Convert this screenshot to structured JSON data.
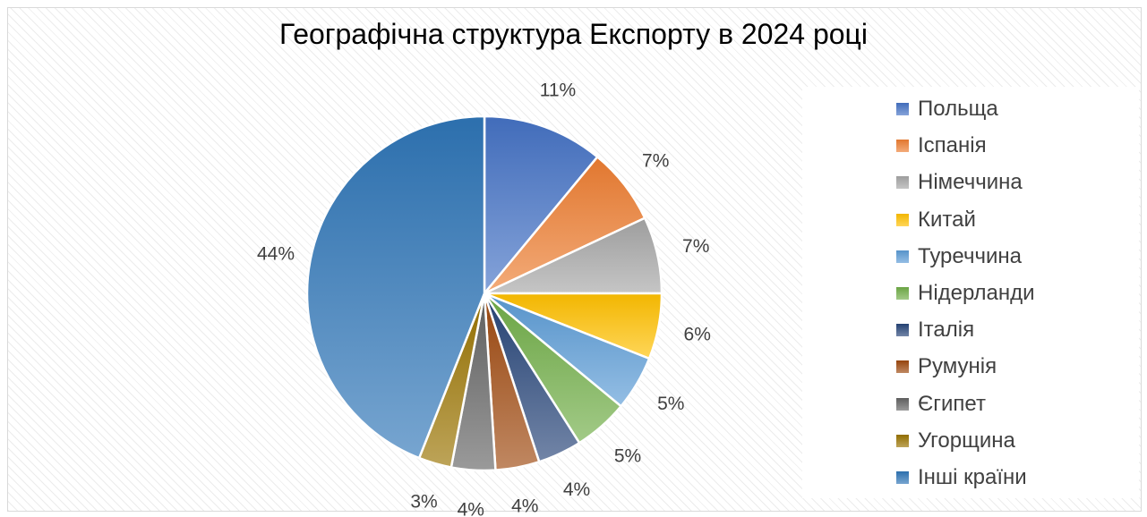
{
  "chart_data": {
    "type": "pie",
    "title": "Географічна структура Експорту в 2024 році",
    "legend_position": "right",
    "start_angle_deg": 0,
    "direction": "clockwise",
    "slices": [
      {
        "name": "Польща",
        "value": 11,
        "label": "11%",
        "color": "#4472c4"
      },
      {
        "name": "Іспанія",
        "value": 7,
        "label": "7%",
        "color": "#ed7d31"
      },
      {
        "name": "Німеччина",
        "value": 7,
        "label": "7%",
        "color": "#a5a5a5"
      },
      {
        "name": "Китай",
        "value": 6,
        "label": "6%",
        "color": "#ffc000"
      },
      {
        "name": "Туреччина",
        "value": 5,
        "label": "5%",
        "color": "#5b9bd5"
      },
      {
        "name": "Нідерланди",
        "value": 5,
        "label": "5%",
        "color": "#70ad47"
      },
      {
        "name": "Італія",
        "value": 4,
        "label": "4%",
        "color": "#264478"
      },
      {
        "name": "Румунія",
        "value": 4,
        "label": "4%",
        "color": "#9e480e"
      },
      {
        "name": "Єгипет",
        "value": 4,
        "label": "4%",
        "color": "#636363"
      },
      {
        "name": "Угорщина",
        "value": 3,
        "label": "3%",
        "color": "#997300"
      },
      {
        "name": "Інші країни",
        "value": 44,
        "label": "44%",
        "color": "#2e75b6"
      }
    ]
  }
}
